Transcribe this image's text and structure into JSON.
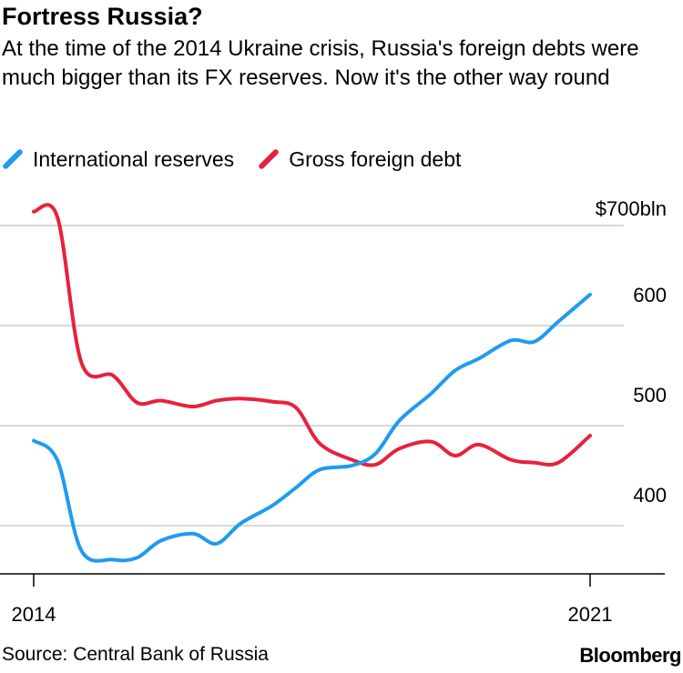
{
  "header": {
    "title": "Fortress Russia?",
    "subtitle": "At the time of the 2014 Ukraine crisis, Russia's foreign debts were much bigger than its FX reserves. Now it's the other way round"
  },
  "footer": {
    "source": "Source: Central Bank of Russia",
    "brand": "Bloomberg"
  },
  "chart_data": {
    "type": "line",
    "title": "Fortress Russia?",
    "ylim": [
      350,
      700
    ],
    "xlim": [
      2014,
      2021.9
    ],
    "y_ticks": [
      {
        "value": 700,
        "label": "$700bln"
      },
      {
        "value": 600,
        "label": "600"
      },
      {
        "value": 500,
        "label": "500"
      },
      {
        "value": 400,
        "label": "400"
      }
    ],
    "x_ticks": [
      {
        "value": 2014,
        "label": "2014"
      },
      {
        "value": 2021,
        "label": "2021"
      }
    ],
    "grid": "horizontal",
    "legend_position": "top-left",
    "series": [
      {
        "name": "International reserves",
        "color": "#1f9bf0",
        "x": [
          2014.0,
          2014.3,
          2014.6,
          2015.0,
          2015.3,
          2015.6,
          2016.0,
          2016.3,
          2016.6,
          2017.0,
          2017.3,
          2017.6,
          2018.0,
          2018.3,
          2018.6,
          2019.0,
          2019.3,
          2019.6,
          2020.0,
          2020.3,
          2020.6,
          2021.0
        ],
        "y": [
          485,
          465,
          375,
          366,
          368,
          385,
          392,
          382,
          402,
          420,
          438,
          456,
          460,
          472,
          505,
          532,
          555,
          567,
          585,
          584,
          604,
          631
        ]
      },
      {
        "name": "Gross foreign debt",
        "color": "#e8213d",
        "x": [
          2014.0,
          2014.3,
          2014.6,
          2015.0,
          2015.3,
          2015.6,
          2016.0,
          2016.3,
          2016.6,
          2017.0,
          2017.3,
          2017.6,
          2018.0,
          2018.3,
          2018.6,
          2019.0,
          2019.3,
          2019.6,
          2020.0,
          2020.3,
          2020.6,
          2021.0
        ],
        "y": [
          714,
          708,
          563,
          550,
          523,
          525,
          519,
          525,
          527,
          524,
          518,
          482,
          466,
          461,
          477,
          484,
          470,
          481,
          466,
          463,
          463,
          490
        ]
      }
    ]
  }
}
